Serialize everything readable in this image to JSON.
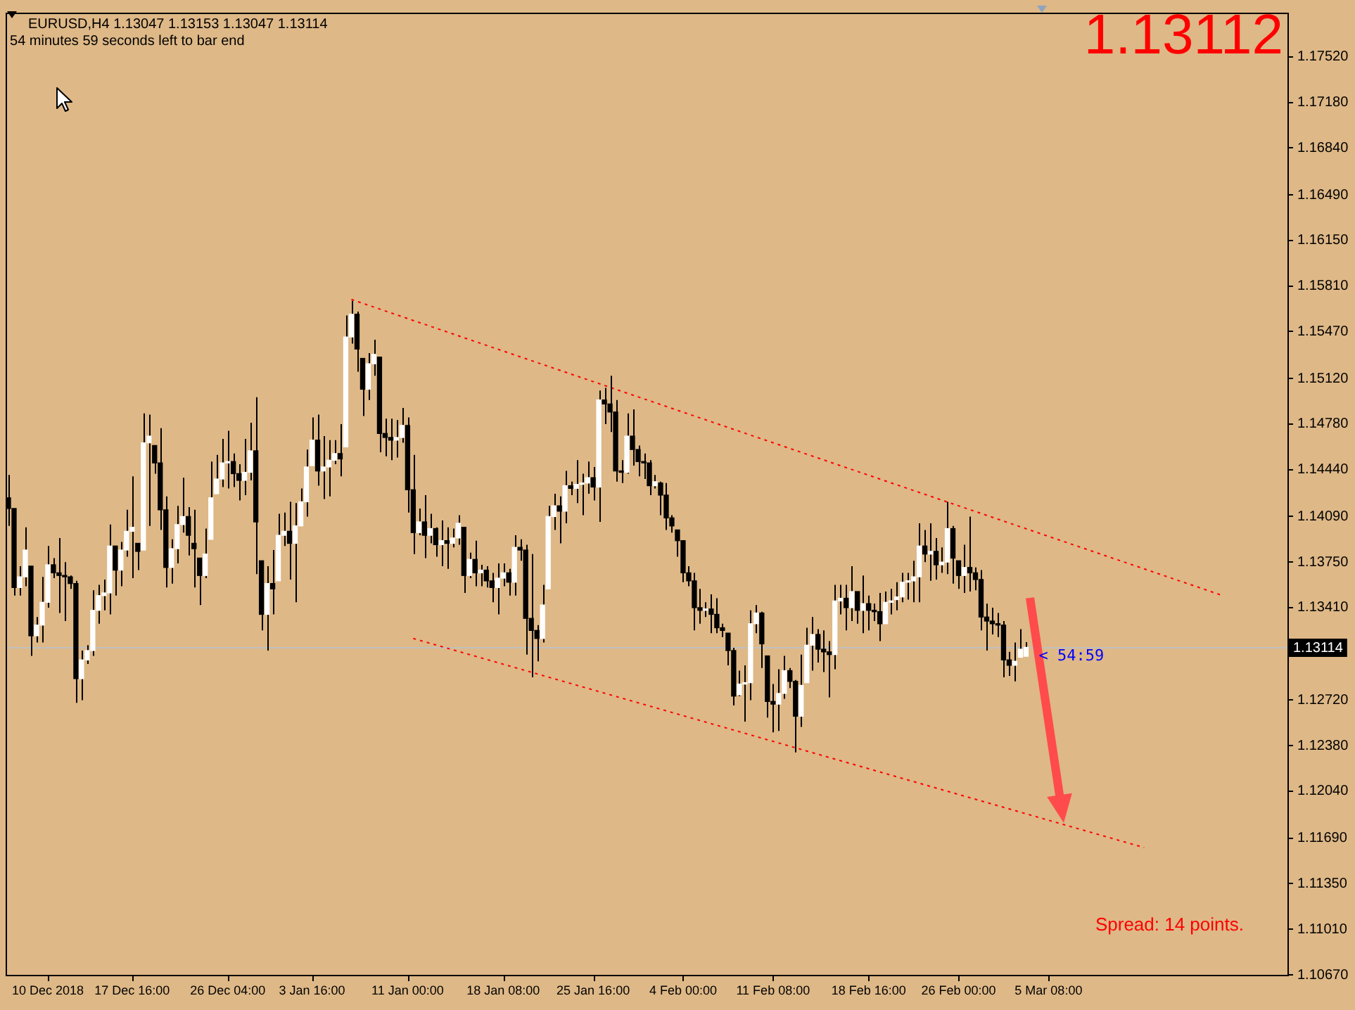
{
  "chart_data": {
    "type": "candlestick",
    "title": "EURUSD,H4 1.13047 1.13153 1.13047 1.13114",
    "subtitle": "54 minutes 59 seconds left to bar end",
    "categories": [
      null,
      null,
      null,
      null,
      null,
      null,
      null,
      "10 Dec 2018",
      null,
      null,
      null,
      null,
      null,
      null,
      null,
      null,
      null,
      null,
      null,
      null,
      null,
      null,
      "17 Dec 16:00",
      null,
      null,
      null,
      null,
      null,
      null,
      null,
      null,
      null,
      null,
      null,
      null,
      null,
      null,
      null,
      null,
      "26 Dec 04:00",
      null,
      null,
      null,
      null,
      null,
      null,
      null,
      null,
      null,
      null,
      null,
      null,
      null,
      null,
      "3 Jan 16:00",
      null,
      null,
      null,
      null,
      null,
      null,
      null,
      null,
      null,
      null,
      null,
      null,
      null,
      null,
      null,
      null,
      "11 Jan 00:00",
      null,
      null,
      null,
      null,
      null,
      null,
      null,
      null,
      null,
      null,
      null,
      null,
      null,
      null,
      null,
      null,
      "18 Jan 08:00",
      null,
      null,
      null,
      null,
      null,
      null,
      null,
      null,
      null,
      null,
      null,
      null,
      null,
      null,
      null,
      "25 Jan 16:00",
      null,
      null,
      null,
      null,
      null,
      null,
      null,
      null,
      null,
      null,
      null,
      null,
      null,
      null,
      null,
      "4 Feb 00:00",
      null,
      null,
      null,
      null,
      null,
      null,
      null,
      null,
      null,
      null,
      null,
      null,
      null,
      null,
      null,
      "11 Feb 08:00",
      null,
      null,
      null,
      null,
      null,
      null,
      null,
      null,
      null,
      null,
      null,
      null,
      null,
      null,
      null,
      null,
      "18 Feb 16:00",
      null,
      null,
      null,
      null,
      null,
      null,
      null,
      null,
      null,
      null,
      null,
      null,
      null,
      null,
      null,
      "26 Feb 00:00",
      null,
      null,
      null,
      null,
      null,
      null,
      null,
      null,
      null,
      null,
      null,
      null,
      null,
      null,
      null,
      "5 Mar 08:00",
      null,
      null,
      null,
      null,
      null,
      null,
      null,
      null,
      null,
      null,
      null,
      null,
      null,
      null,
      null,
      null,
      null,
      null,
      null,
      null,
      null,
      null,
      null,
      null,
      null,
      null,
      null,
      null,
      null,
      null,
      null,
      null,
      null,
      null,
      null,
      null,
      null,
      null,
      null,
      null,
      null,
      null
    ],
    "ohlc": [
      [
        1.1423,
        1.144,
        1.1402,
        1.1415
      ],
      [
        1.1415,
        1.1415,
        1.135,
        1.1356
      ],
      [
        1.1356,
        1.1372,
        1.135,
        1.1364
      ],
      [
        1.1364,
        1.1401,
        1.1357,
        1.1384
      ],
      [
        1.1372,
        1.1372,
        1.1305,
        1.132
      ],
      [
        1.132,
        1.1334,
        1.1315,
        1.1328
      ],
      [
        1.1328,
        1.1364,
        1.1315,
        1.1345
      ],
      [
        1.1345,
        1.1387,
        1.1341,
        1.1373
      ],
      [
        1.1373,
        1.1378,
        1.1363,
        1.1367
      ],
      [
        1.1367,
        1.1393,
        1.1337,
        1.1365
      ],
      [
        1.1365,
        1.1375,
        1.1331,
        1.1364
      ],
      [
        1.1364,
        1.1365,
        1.1355,
        1.1359
      ],
      [
        1.1359,
        1.1361,
        1.127,
        1.1288
      ],
      [
        1.1288,
        1.1309,
        1.1272,
        1.1302
      ],
      [
        1.1302,
        1.1313,
        1.1299,
        1.1309
      ],
      [
        1.1309,
        1.1354,
        1.1305,
        1.1339
      ],
      [
        1.1339,
        1.1358,
        1.1329,
        1.135
      ],
      [
        1.135,
        1.1362,
        1.1339,
        1.1352
      ],
      [
        1.1352,
        1.1403,
        1.1336,
        1.1387
      ],
      [
        1.1387,
        1.1387,
        1.135,
        1.1369
      ],
      [
        1.1369,
        1.139,
        1.1357,
        1.1384
      ],
      [
        1.1384,
        1.1414,
        1.1379,
        1.1398
      ],
      [
        1.1398,
        1.1439,
        1.1363,
        1.1401
      ],
      [
        1.1389,
        1.1389,
        1.1369,
        1.1383
      ],
      [
        1.1384,
        1.1486,
        1.1384,
        1.1464
      ],
      [
        1.1464,
        1.1485,
        1.1402,
        1.1469
      ],
      [
        1.1462,
        1.1462,
        1.1441,
        1.1449
      ],
      [
        1.1449,
        1.1475,
        1.1399,
        1.1414
      ],
      [
        1.1414,
        1.1424,
        1.1356,
        1.1371
      ],
      [
        1.1371,
        1.1392,
        1.1359,
        1.1385
      ],
      [
        1.1385,
        1.1417,
        1.1374,
        1.1403
      ],
      [
        1.1403,
        1.1438,
        1.1397,
        1.1409
      ],
      [
        1.1409,
        1.1416,
        1.138,
        1.1395
      ],
      [
        1.1389,
        1.1414,
        1.1356,
        1.1385
      ],
      [
        1.1378,
        1.1378,
        1.1343,
        1.1365
      ],
      [
        1.1365,
        1.14,
        1.1363,
        1.1381
      ],
      [
        1.1392,
        1.145,
        1.1392,
        1.1423
      ],
      [
        1.1426,
        1.1455,
        1.1426,
        1.1437
      ],
      [
        1.1437,
        1.1467,
        1.1431,
        1.1449
      ],
      [
        1.1449,
        1.1473,
        1.143,
        1.145
      ],
      [
        1.145,
        1.1456,
        1.1431,
        1.1441
      ],
      [
        1.1441,
        1.1448,
        1.1421,
        1.1436
      ],
      [
        1.1436,
        1.1467,
        1.1425,
        1.1442
      ],
      [
        1.1442,
        1.1479,
        1.1436,
        1.1458
      ],
      [
        1.1458,
        1.1498,
        1.1366,
        1.1405
      ],
      [
        1.1376,
        1.1376,
        1.1324,
        1.1336
      ],
      [
        1.1336,
        1.1372,
        1.1309,
        1.1359
      ],
      [
        1.1359,
        1.1384,
        1.1336,
        1.1355
      ],
      [
        1.1361,
        1.1411,
        1.1361,
        1.1395
      ],
      [
        1.1395,
        1.1412,
        1.1387,
        1.1398
      ],
      [
        1.1398,
        1.142,
        1.1362,
        1.1389
      ],
      [
        1.1389,
        1.1419,
        1.1345,
        1.1402
      ],
      [
        1.1402,
        1.143,
        1.1402,
        1.142
      ],
      [
        1.142,
        1.1459,
        1.1409,
        1.1446
      ],
      [
        1.1447,
        1.1483,
        1.1447,
        1.1466
      ],
      [
        1.1466,
        1.1485,
        1.1432,
        1.1443
      ],
      [
        1.1443,
        1.1469,
        1.1422,
        1.1446
      ],
      [
        1.1446,
        1.1466,
        1.1424,
        1.1451
      ],
      [
        1.1451,
        1.1466,
        1.1448,
        1.1456
      ],
      [
        1.1456,
        1.1478,
        1.1439,
        1.1452
      ],
      [
        1.1461,
        1.1559,
        1.1461,
        1.1543
      ],
      [
        1.1543,
        1.157,
        1.1538,
        1.156
      ],
      [
        1.156,
        1.1562,
        1.1517,
        1.1534
      ],
      [
        1.1527,
        1.1527,
        1.1484,
        1.1504
      ],
      [
        1.1504,
        1.1531,
        1.1496,
        1.1523
      ],
      [
        1.1523,
        1.1541,
        1.1514,
        1.153
      ],
      [
        1.1528,
        1.1528,
        1.1457,
        1.1471
      ],
      [
        1.1471,
        1.1482,
        1.1454,
        1.1468
      ],
      [
        1.1468,
        1.1482,
        1.1451,
        1.1466
      ],
      [
        1.1466,
        1.1481,
        1.1453,
        1.1468
      ],
      [
        1.1468,
        1.149,
        1.1464,
        1.1477
      ],
      [
        1.1477,
        1.1483,
        1.1412,
        1.1429
      ],
      [
        1.1429,
        1.1455,
        1.1381,
        1.1397
      ],
      [
        1.1397,
        1.1415,
        1.1395,
        1.1405
      ],
      [
        1.1405,
        1.1425,
        1.1378,
        1.1395
      ],
      [
        1.1395,
        1.1411,
        1.1389,
        1.14
      ],
      [
        1.14,
        1.1401,
        1.1379,
        1.1388
      ],
      [
        1.1388,
        1.1406,
        1.1372,
        1.1391
      ],
      [
        1.1391,
        1.1401,
        1.137,
        1.1389
      ],
      [
        1.1389,
        1.14,
        1.1386,
        1.1393
      ],
      [
        1.1393,
        1.141,
        1.1388,
        1.1404
      ],
      [
        1.1401,
        1.1401,
        1.1352,
        1.1365
      ],
      [
        1.1365,
        1.1382,
        1.1363,
        1.1377
      ],
      [
        1.1377,
        1.1391,
        1.1357,
        1.1367
      ],
      [
        1.1367,
        1.1373,
        1.1357,
        1.1369
      ],
      [
        1.1369,
        1.1372,
        1.1356,
        1.1361
      ],
      [
        1.1361,
        1.1367,
        1.1345,
        1.1356
      ],
      [
        1.1356,
        1.1374,
        1.1336,
        1.1363
      ],
      [
        1.1363,
        1.1374,
        1.1357,
        1.1367
      ],
      [
        1.1367,
        1.137,
        1.135,
        1.136
      ],
      [
        1.136,
        1.1395,
        1.135,
        1.1386
      ],
      [
        1.1386,
        1.1392,
        1.1376,
        1.1384
      ],
      [
        1.1384,
        1.1388,
        1.1306,
        1.1333
      ],
      [
        1.1333,
        1.1381,
        1.1289,
        1.1324
      ],
      [
        1.1324,
        1.1328,
        1.1301,
        1.1318
      ],
      [
        1.1318,
        1.1358,
        1.1315,
        1.1343
      ],
      [
        1.1355,
        1.1417,
        1.1355,
        1.1409
      ],
      [
        1.1409,
        1.1426,
        1.1399,
        1.1417
      ],
      [
        1.1417,
        1.1424,
        1.1389,
        1.1413
      ],
      [
        1.1413,
        1.1443,
        1.1404,
        1.1432
      ],
      [
        1.1432,
        1.1435,
        1.1425,
        1.143
      ],
      [
        1.143,
        1.1451,
        1.1419,
        1.1433
      ],
      [
        1.1433,
        1.1441,
        1.141,
        1.1434
      ],
      [
        1.1434,
        1.145,
        1.1426,
        1.1438
      ],
      [
        1.1438,
        1.1446,
        1.1421,
        1.1431
      ],
      [
        1.1431,
        1.1503,
        1.1405,
        1.1496
      ],
      [
        1.1496,
        1.1505,
        1.1478,
        1.1493
      ],
      [
        1.1493,
        1.1514,
        1.1472,
        1.1487
      ],
      [
        1.1487,
        1.1496,
        1.1435,
        1.1443
      ],
      [
        1.1443,
        1.1451,
        1.1434,
        1.1442
      ],
      [
        1.1442,
        1.1486,
        1.1441,
        1.1469
      ],
      [
        1.1469,
        1.1489,
        1.1447,
        1.1459
      ],
      [
        1.1459,
        1.1462,
        1.1439,
        1.145
      ],
      [
        1.145,
        1.1456,
        1.1437,
        1.1449
      ],
      [
        1.1449,
        1.1451,
        1.1425,
        1.1432
      ],
      [
        1.1432,
        1.144,
        1.143,
        1.1435
      ],
      [
        1.1434,
        1.1435,
        1.141,
        1.1425
      ],
      [
        1.1425,
        1.1434,
        1.1399,
        1.1408
      ],
      [
        1.1408,
        1.141,
        1.1397,
        1.1402
      ],
      [
        1.1399,
        1.1399,
        1.1379,
        1.1391
      ],
      [
        1.1391,
        1.1391,
        1.136,
        1.1367
      ],
      [
        1.1367,
        1.1372,
        1.1357,
        1.1361
      ],
      [
        1.1361,
        1.1367,
        1.1324,
        1.1341
      ],
      [
        1.1341,
        1.1355,
        1.1329,
        1.1339
      ],
      [
        1.1339,
        1.1345,
        1.1334,
        1.134
      ],
      [
        1.134,
        1.1351,
        1.1322,
        1.1336
      ],
      [
        1.1336,
        1.1348,
        1.1322,
        1.1326
      ],
      [
        1.1326,
        1.1329,
        1.1319,
        1.1324
      ],
      [
        1.1322,
        1.1322,
        1.1298,
        1.1309
      ],
      [
        1.1309,
        1.1311,
        1.1268,
        1.1275
      ],
      [
        1.1276,
        1.1294,
        1.1275,
        1.1284
      ],
      [
        1.1284,
        1.1298,
        1.1256,
        1.1285
      ],
      [
        1.1285,
        1.1339,
        1.1272,
        1.1329
      ],
      [
        1.1329,
        1.1343,
        1.1322,
        1.1337
      ],
      [
        1.1337,
        1.1338,
        1.1296,
        1.1314
      ],
      [
        1.1305,
        1.1305,
        1.1259,
        1.1271
      ],
      [
        1.1271,
        1.1284,
        1.1248,
        1.1269
      ],
      [
        1.1269,
        1.1295,
        1.1249,
        1.1277
      ],
      [
        1.1277,
        1.1305,
        1.1273,
        1.1294
      ],
      [
        1.1294,
        1.1296,
        1.1281,
        1.1286
      ],
      [
        1.1286,
        1.1287,
        1.1233,
        1.126
      ],
      [
        1.126,
        1.1306,
        1.1252,
        1.1283
      ],
      [
        1.1285,
        1.1326,
        1.1285,
        1.1313
      ],
      [
        1.1313,
        1.1334,
        1.1294,
        1.1321
      ],
      [
        1.1321,
        1.1325,
        1.13,
        1.131
      ],
      [
        1.131,
        1.1324,
        1.1293,
        1.1308
      ],
      [
        1.1308,
        1.1316,
        1.1274,
        1.1306
      ],
      [
        1.1306,
        1.1358,
        1.1295,
        1.1346
      ],
      [
        1.1346,
        1.1358,
        1.1336,
        1.1348
      ],
      [
        1.1348,
        1.1358,
        1.1324,
        1.1341
      ],
      [
        1.1341,
        1.1372,
        1.1331,
        1.1353
      ],
      [
        1.1353,
        1.1353,
        1.1329,
        1.1339
      ],
      [
        1.1339,
        1.1365,
        1.1322,
        1.1344
      ],
      [
        1.1344,
        1.135,
        1.1324,
        1.1339
      ],
      [
        1.1339,
        1.1344,
        1.1331,
        1.1338
      ],
      [
        1.1338,
        1.1352,
        1.1316,
        1.1329
      ],
      [
        1.1329,
        1.1353,
        1.1329,
        1.1345
      ],
      [
        1.1345,
        1.1355,
        1.1336,
        1.1346
      ],
      [
        1.1347,
        1.136,
        1.1339,
        1.1349
      ],
      [
        1.1349,
        1.1367,
        1.1345,
        1.136
      ],
      [
        1.136,
        1.1367,
        1.1347,
        1.1361
      ],
      [
        1.1361,
        1.1376,
        1.1345,
        1.1364
      ],
      [
        1.1364,
        1.1404,
        1.1345,
        1.1387
      ],
      [
        1.1387,
        1.1399,
        1.1375,
        1.1381
      ],
      [
        1.1381,
        1.1404,
        1.1361,
        1.1383
      ],
      [
        1.1383,
        1.1393,
        1.1362,
        1.1373
      ],
      [
        1.1373,
        1.1386,
        1.1367,
        1.1375
      ],
      [
        1.1375,
        1.142,
        1.1366,
        1.14
      ],
      [
        1.14,
        1.1402,
        1.1359,
        1.1378
      ],
      [
        1.1376,
        1.1376,
        1.1355,
        1.1365
      ],
      [
        1.1365,
        1.1388,
        1.1352,
        1.1371
      ],
      [
        1.1371,
        1.1409,
        1.1353,
        1.1367
      ],
      [
        1.1367,
        1.1371,
        1.1354,
        1.1362
      ],
      [
        1.1362,
        1.1369,
        1.1324,
        1.1334
      ],
      [
        1.1334,
        1.1344,
        1.1309,
        1.1331
      ],
      [
        1.1331,
        1.1341,
        1.1321,
        1.1329
      ],
      [
        1.1329,
        1.1337,
        1.1319,
        1.1328
      ],
      [
        1.1328,
        1.1331,
        1.1289,
        1.1302
      ],
      [
        1.1302,
        1.1308,
        1.129,
        1.1298
      ],
      [
        1.1298,
        1.1315,
        1.1286,
        1.1301
      ],
      [
        1.1304,
        1.1325,
        1.1304,
        1.131
      ],
      [
        1.13047,
        1.13153,
        1.13047,
        1.13114
      ],
      null,
      null,
      null,
      null,
      null,
      null,
      null,
      null,
      null,
      null,
      null,
      null,
      null,
      null,
      null,
      null,
      null,
      null,
      null,
      null,
      null,
      null,
      null,
      null,
      null,
      null,
      null,
      null,
      null,
      null,
      null,
      null,
      null,
      null,
      null,
      null,
      null,
      null,
      null,
      null,
      null,
      null,
      null,
      null,
      null,
      null
    ],
    "color": "#000000",
    "colors": [
      "#000000",
      "#000000",
      "#ffffff",
      "#ffffff",
      "#000000",
      "#ffffff",
      "#ffffff",
      "#ffffff",
      "#000000",
      "#000000",
      "#000000",
      "#000000",
      "#000000",
      "#ffffff",
      "#ffffff",
      "#ffffff",
      "#ffffff",
      "#ffffff",
      "#ffffff",
      "#000000",
      "#ffffff",
      "#ffffff",
      "#ffffff",
      "#000000",
      "#ffffff",
      "#ffffff",
      "#000000",
      "#000000",
      "#000000",
      "#ffffff",
      "#ffffff",
      "#ffffff",
      "#000000",
      "#000000",
      "#000000",
      "#ffffff",
      "#ffffff",
      "#ffffff",
      "#ffffff",
      "#ffffff",
      "#000000",
      "#000000",
      "#ffffff",
      "#ffffff",
      "#000000",
      "#000000",
      "#ffffff",
      "#000000",
      "#ffffff",
      "#ffffff",
      "#000000",
      "#ffffff",
      "#ffffff",
      "#ffffff",
      "#ffffff",
      "#000000",
      "#ffffff",
      "#ffffff",
      "#ffffff",
      "#000000",
      "#ffffff",
      "#ffffff",
      "#000000",
      "#000000",
      "#ffffff",
      "#ffffff",
      "#000000",
      "#000000",
      "#000000",
      "#ffffff",
      "#ffffff",
      "#000000",
      "#000000",
      "#ffffff",
      "#000000",
      "#ffffff",
      "#000000",
      "#ffffff",
      "#000000",
      "#ffffff",
      "#ffffff",
      "#000000",
      "#ffffff",
      "#000000",
      "#ffffff",
      "#000000",
      "#000000",
      "#ffffff",
      "#ffffff",
      "#000000",
      "#ffffff",
      "#000000",
      "#000000",
      "#000000",
      "#000000",
      "#ffffff",
      "#ffffff",
      "#ffffff",
      "#000000",
      "#ffffff",
      "#000000",
      "#ffffff",
      "#ffffff",
      "#ffffff",
      "#000000",
      "#ffffff",
      "#000000",
      "#000000",
      "#000000",
      "#000000",
      "#ffffff",
      "#000000",
      "#000000",
      "#000000",
      "#000000",
      "#ffffff",
      "#000000",
      "#000000",
      "#000000",
      "#000000",
      "#000000",
      "#000000",
      "#000000",
      "#000000",
      "#ffffff",
      "#000000",
      "#000000",
      "#000000",
      "#000000",
      "#000000",
      "#ffffff",
      "#ffffff",
      "#ffffff",
      "#ffffff",
      "#000000",
      "#000000",
      "#000000",
      "#ffffff",
      "#ffffff",
      "#000000",
      "#000000",
      "#ffffff",
      "#ffffff",
      "#ffffff",
      "#000000",
      "#000000",
      "#000000",
      "#ffffff",
      "#ffffff",
      "#000000",
      "#ffffff",
      "#000000",
      "#ffffff",
      "#000000",
      "#000000",
      "#000000",
      "#ffffff",
      "#ffffff",
      "#ffffff",
      "#ffffff",
      "#ffffff",
      "#ffffff",
      "#ffffff",
      "#000000",
      "#ffffff",
      "#000000",
      "#ffffff",
      "#ffffff",
      "#000000",
      "#000000",
      "#ffffff",
      "#000000",
      "#000000",
      "#000000",
      "#000000",
      "#000000",
      "#000000",
      "#000000",
      "#000000",
      "#ffffff",
      "#ffffff",
      "#ffffff",
      null,
      null,
      null,
      null,
      null,
      null,
      null,
      null,
      null,
      null,
      null,
      null,
      null,
      null,
      null,
      null,
      null,
      null,
      null,
      null,
      null,
      null,
      null,
      null,
      null,
      null,
      null,
      null,
      null,
      null,
      null,
      null,
      null,
      null,
      null,
      null,
      null,
      null,
      null,
      null,
      null,
      null,
      null,
      null,
      null,
      null
    ],
    "series": [
      {
        "type": "line",
        "color": "#ff0000",
        "line_style": "dotted",
        "values": [
          null,
          null,
          null,
          null,
          null,
          null,
          null,
          null,
          null,
          null,
          null,
          null,
          null,
          null,
          null,
          null,
          null,
          null,
          null,
          null,
          null,
          null,
          null,
          null,
          null,
          null,
          null,
          null,
          null,
          null,
          null,
          null,
          null,
          null,
          null,
          null,
          null,
          null,
          null,
          null,
          null,
          null,
          null,
          null,
          null,
          null,
          null,
          null,
          null,
          null,
          null,
          null,
          null,
          null,
          null,
          null,
          null,
          null,
          null,
          null,
          null,
          1.1571,
          null,
          null,
          null,
          null,
          null,
          null,
          null,
          null,
          null,
          null,
          null,
          null,
          null,
          null,
          null,
          null,
          null,
          null,
          null,
          null,
          null,
          null,
          null,
          null,
          null,
          null,
          null,
          null,
          null,
          null,
          null,
          null,
          null,
          null,
          null,
          null,
          null,
          null,
          null,
          null,
          null,
          null,
          null,
          null,
          null,
          null,
          null,
          null,
          null,
          null,
          null,
          null,
          null,
          null,
          null,
          null,
          null,
          null,
          null,
          null,
          null,
          null,
          null,
          null,
          null,
          null,
          null,
          null,
          null,
          null,
          null,
          null,
          null,
          null,
          null,
          null,
          null,
          null,
          null,
          null,
          null,
          null,
          null,
          null,
          null,
          null,
          null,
          null,
          null,
          null,
          null,
          null,
          null,
          null,
          null,
          null,
          null,
          null,
          null,
          null,
          null,
          null,
          null,
          null,
          null,
          null,
          null,
          null,
          null,
          null,
          null,
          null,
          null,
          null,
          null,
          null,
          null,
          null,
          null,
          null,
          null,
          null,
          null,
          null,
          null,
          null,
          null,
          null,
          null,
          null,
          null,
          null,
          null,
          null,
          null,
          null,
          null,
          null,
          null,
          null,
          null,
          null,
          null,
          null,
          null,
          null,
          null,
          null,
          null,
          null,
          null,
          null,
          null,
          null,
          1.135,
          null,
          null,
          null,
          null,
          null,
          null,
          null,
          null,
          null,
          null,
          null
        ]
      },
      {
        "type": "line",
        "color": "#ff0000",
        "line_style": "dotted",
        "values": [
          null,
          null,
          null,
          null,
          null,
          null,
          null,
          null,
          null,
          null,
          null,
          null,
          null,
          null,
          null,
          null,
          null,
          null,
          null,
          null,
          null,
          null,
          null,
          null,
          null,
          null,
          null,
          null,
          null,
          null,
          null,
          null,
          null,
          null,
          null,
          null,
          null,
          null,
          null,
          null,
          null,
          null,
          null,
          null,
          null,
          null,
          null,
          null,
          null,
          null,
          null,
          null,
          null,
          null,
          null,
          null,
          null,
          null,
          null,
          null,
          null,
          null,
          null,
          null,
          null,
          null,
          null,
          null,
          null,
          null,
          null,
          null,
          1.1318,
          null,
          null,
          null,
          null,
          null,
          null,
          null,
          null,
          null,
          null,
          null,
          null,
          null,
          null,
          null,
          null,
          null,
          null,
          null,
          null,
          null,
          null,
          null,
          null,
          null,
          null,
          null,
          null,
          null,
          null,
          null,
          null,
          null,
          null,
          null,
          null,
          null,
          null,
          null,
          null,
          null,
          null,
          null,
          null,
          null,
          null,
          null,
          null,
          null,
          null,
          null,
          null,
          null,
          null,
          null,
          null,
          null,
          null,
          null,
          null,
          null,
          null,
          null,
          null,
          null,
          null,
          null,
          null,
          null,
          null,
          null,
          null,
          null,
          null,
          null,
          null,
          null,
          null,
          null,
          null,
          null,
          null,
          null,
          null,
          null,
          null,
          null,
          null,
          null,
          null,
          null,
          null,
          null,
          null,
          null,
          null,
          null,
          null,
          null,
          null,
          null,
          null,
          null,
          null,
          null,
          null,
          null,
          null,
          null,
          null,
          null,
          null,
          null,
          null,
          null,
          null,
          null,
          null,
          null,
          null,
          null,
          null,
          null,
          null,
          null,
          null,
          null,
          null,
          null,
          1.1162,
          null,
          null,
          null,
          null,
          null,
          null,
          null,
          null,
          null,
          null,
          null,
          null,
          null,
          null,
          null,
          null,
          null,
          null,
          null,
          null,
          null,
          null,
          null,
          null,
          null
        ]
      }
    ],
    "ylim": [
      1.1067,
      1.1785
    ],
    "yticks": [
      {
        "value": 1.1067,
        "label": "1.10670"
      },
      {
        "value": 1.1101,
        "label": "1.11010"
      },
      {
        "value": 1.1135,
        "label": "1.11350"
      },
      {
        "value": 1.1169,
        "label": "1.11690"
      },
      {
        "value": 1.1204,
        "label": "1.12040"
      },
      {
        "value": 1.1238,
        "label": "1.12380"
      },
      {
        "value": 1.1272,
        "label": "1.12720"
      },
      {
        "value": 1.1306,
        "label": null
      },
      {
        "value": 1.1341,
        "label": "1.13410"
      },
      {
        "value": 1.1375,
        "label": "1.13750"
      },
      {
        "value": 1.1409,
        "label": "1.14090"
      },
      {
        "value": 1.1444,
        "label": "1.14440"
      },
      {
        "value": 1.1478,
        "label": "1.14780"
      },
      {
        "value": 1.1512,
        "label": "1.15120"
      },
      {
        "value": 1.1547,
        "label": "1.15470"
      },
      {
        "value": 1.1581,
        "label": "1.15810"
      },
      {
        "value": 1.1615,
        "label": "1.16150"
      },
      {
        "value": 1.1649,
        "label": "1.16490"
      },
      {
        "value": 1.1684,
        "label": "1.16840"
      },
      {
        "value": 1.1718,
        "label": "1.17180"
      },
      {
        "value": 1.1752,
        "label": "1.17520"
      }
    ],
    "ref_lines": [
      {
        "axis": "y",
        "value": 1.13114,
        "label": "1.13114",
        "color": "#c0c0c0"
      }
    ],
    "annotations": [
      "1.13112",
      {
        "text": "< 54:59",
        "y": 1.13114
      },
      "Spread: 14 points."
    ],
    "grid": false,
    "legend": false,
    "marker": "none"
  }
}
